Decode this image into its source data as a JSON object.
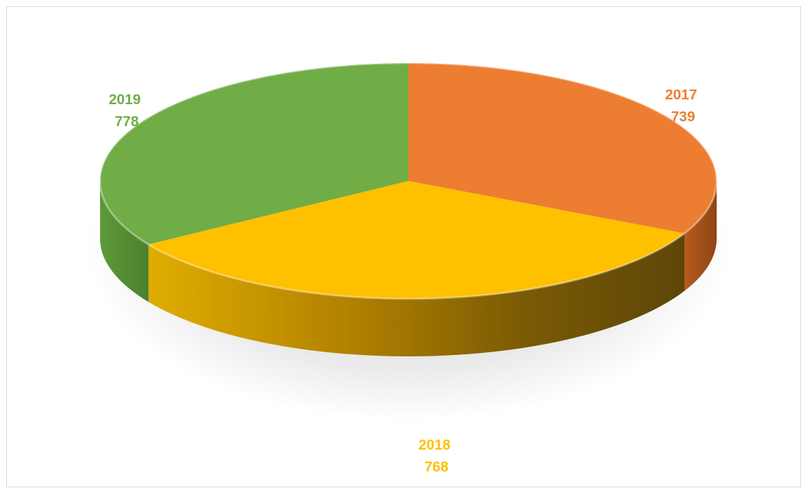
{
  "chart_data": {
    "type": "pie",
    "categories": [
      "2017",
      "2018",
      "2019"
    ],
    "values": [
      739,
      768,
      778
    ],
    "colors": [
      "#ED7D31",
      "#FFC000",
      "#70AD47"
    ],
    "title": "",
    "legend": "none",
    "style": "3d-pie",
    "data_labels": "category-and-value"
  },
  "labels": [
    {
      "category": "2017",
      "value": "739"
    },
    {
      "category": "2018",
      "value": "768"
    },
    {
      "category": "2019",
      "value": "778"
    }
  ]
}
